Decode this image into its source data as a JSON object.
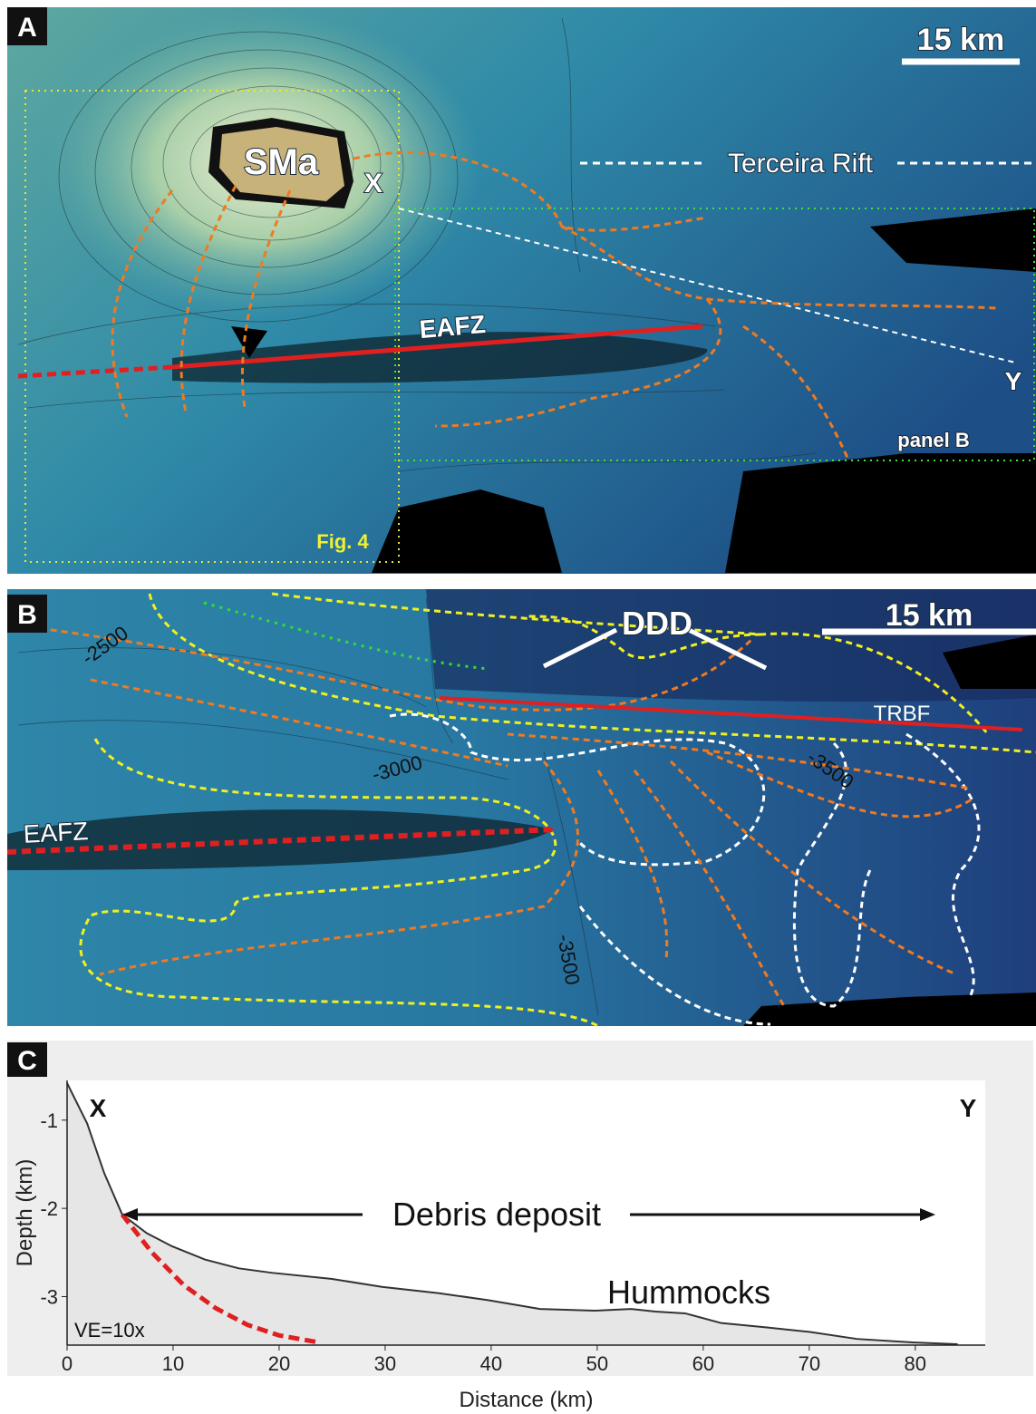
{
  "panel_a": {
    "letter": "A",
    "scale": "15 km",
    "labels": [
      "SMa",
      "X",
      "Terceira Rift",
      "EAFZ",
      "Y",
      "panel B",
      "Fig. 4"
    ]
  },
  "panel_b": {
    "letter": "B",
    "scale": "15 km",
    "labels": [
      "DDD",
      "TRBF",
      "EAFZ"
    ],
    "contour_labels": [
      "-2500",
      "-3000",
      "-3500",
      "-3500"
    ]
  },
  "chart_data": {
    "type": "line",
    "letter": "C",
    "x_label": "Distance (km)",
    "y_label": "Depth (km)",
    "annotations": [
      "X",
      "Y",
      "Debris deposit",
      "Hummocks",
      "VE=10x"
    ],
    "xlim": [
      0,
      86.6
    ],
    "ylim": [
      -3.55,
      -0.55
    ],
    "xticks": [
      0,
      10,
      20,
      30,
      40,
      50,
      60,
      70,
      80
    ],
    "yticks": [
      -1,
      -2,
      -3
    ],
    "series": [
      {
        "color": "#333333",
        "x": [
          0,
          1.9,
          3.5,
          5.2,
          7.5,
          9.9,
          13,
          16.2,
          19.3,
          25,
          29.7,
          35,
          39.7,
          44.6,
          49.8,
          53.2,
          55.5,
          58.3,
          61.7,
          66,
          70,
          74.5,
          79.9,
          84
        ],
        "values": [
          -0.58,
          -1.04,
          -1.6,
          -2.07,
          -2.28,
          -2.43,
          -2.58,
          -2.68,
          -2.73,
          -2.8,
          -2.89,
          -2.96,
          -3.04,
          -3.14,
          -3.16,
          -3.14,
          -3.17,
          -3.19,
          -3.3,
          -3.35,
          -3.4,
          -3.48,
          -3.52,
          -3.54
        ]
      },
      {
        "color": "#e02020",
        "dashed": true,
        "x": [
          5.2,
          8,
          11,
          14,
          17,
          20,
          23.8
        ],
        "values": [
          -2.07,
          -2.5,
          -2.87,
          -3.13,
          -3.32,
          -3.44,
          -3.52
        ]
      }
    ]
  }
}
